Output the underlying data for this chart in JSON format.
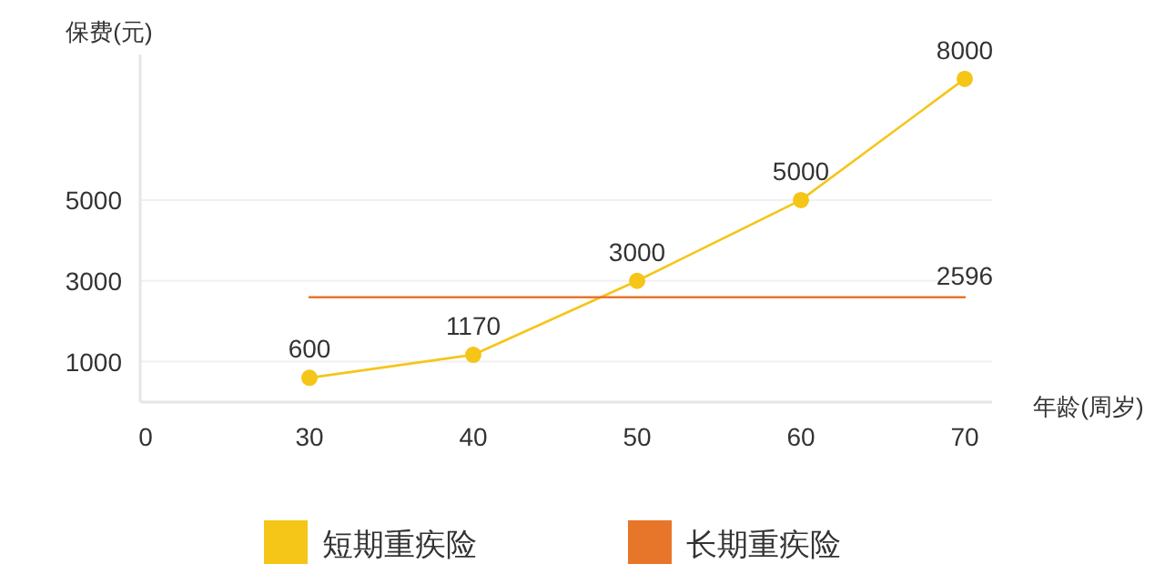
{
  "chart_data": {
    "type": "line",
    "xlabel": "年龄(周岁)",
    "ylabel": "保费(元)",
    "categories": [
      "0",
      "30",
      "40",
      "50",
      "60",
      "70"
    ],
    "series": [
      {
        "name": "短期重疾险",
        "color": "#f5c518",
        "values": [
          null,
          600,
          1170,
          3000,
          5000,
          8000
        ],
        "marker": "circle",
        "data_labels": true
      },
      {
        "name": "长期重疾险",
        "color": "#e8762a",
        "values": [
          null,
          2596,
          2596,
          2596,
          2596,
          2596
        ],
        "marker": "none",
        "value_labels": [
          null,
          null,
          null,
          null,
          null,
          "2596"
        ]
      }
    ],
    "ylim": [
      0,
      8600
    ],
    "yticks": [
      1000,
      3000,
      5000
    ],
    "grid": "y",
    "legend": "bottom"
  }
}
